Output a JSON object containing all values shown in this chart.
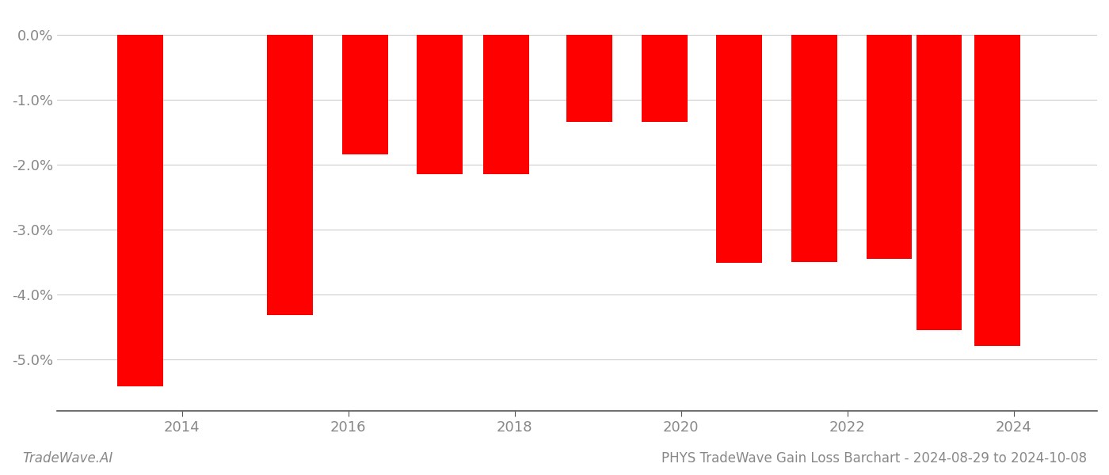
{
  "years": [
    2013.5,
    2015.3,
    2016.2,
    2017.1,
    2017.9,
    2018.9,
    2019.8,
    2020.7,
    2021.6,
    2022.5,
    2023.1,
    2023.8
  ],
  "values": [
    -5.42,
    -4.32,
    -1.85,
    -2.15,
    -2.15,
    -1.35,
    -1.35,
    -3.52,
    -3.5,
    -3.45,
    -4.55,
    -4.8
  ],
  "bar_color": "#ff0000",
  "background_color": "#ffffff",
  "grid_color": "#cccccc",
  "axis_color": "#888888",
  "title": "PHYS TradeWave Gain Loss Barchart - 2024-08-29 to 2024-10-08",
  "watermark": "TradeWave.AI",
  "ylim_min": -5.8,
  "ylim_max": 0.35,
  "yticks": [
    0.0,
    -1.0,
    -2.0,
    -3.0,
    -4.0,
    -5.0
  ],
  "bar_width": 0.55,
  "xtick_positions": [
    2014,
    2016,
    2018,
    2020,
    2022,
    2024
  ],
  "xlim_min": 2012.5,
  "xlim_max": 2025.0,
  "xlabel_fontsize": 13,
  "title_fontsize": 12,
  "watermark_fontsize": 12,
  "tick_label_color": "#888888"
}
